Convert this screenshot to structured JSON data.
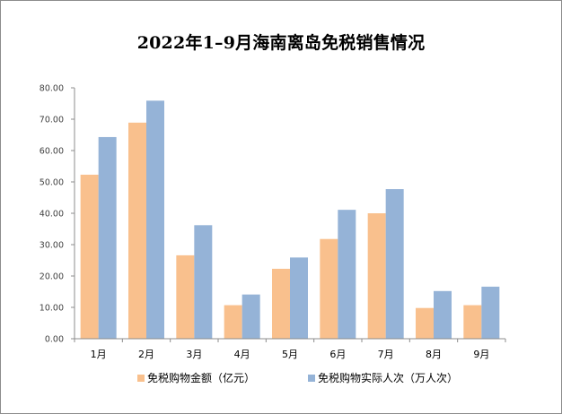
{
  "chart_data": {
    "type": "bar",
    "title": "2022年1–9月海南离岛免税销售情况",
    "categories": [
      "1月",
      "2月",
      "3月",
      "4月",
      "5月",
      "6月",
      "7月",
      "8月",
      "9月"
    ],
    "series": [
      {
        "name": "免税购物金额（亿元）",
        "color": "#f9c08d",
        "values": [
          52.3,
          68.9,
          26.6,
          10.7,
          22.3,
          31.8,
          40.0,
          9.8,
          10.7
        ]
      },
      {
        "name": "免税购物实际人次（万人次）",
        "color": "#95b3d7",
        "values": [
          64.3,
          75.9,
          36.2,
          14.1,
          25.9,
          41.1,
          47.7,
          15.2,
          16.6
        ]
      }
    ],
    "y_ticks": [
      "0.00",
      "10.00",
      "20.00",
      "30.00",
      "40.00",
      "50.00",
      "60.00",
      "70.00",
      "80.00"
    ],
    "ylim": [
      0,
      80
    ],
    "grid": false,
    "legend": "bottom"
  }
}
